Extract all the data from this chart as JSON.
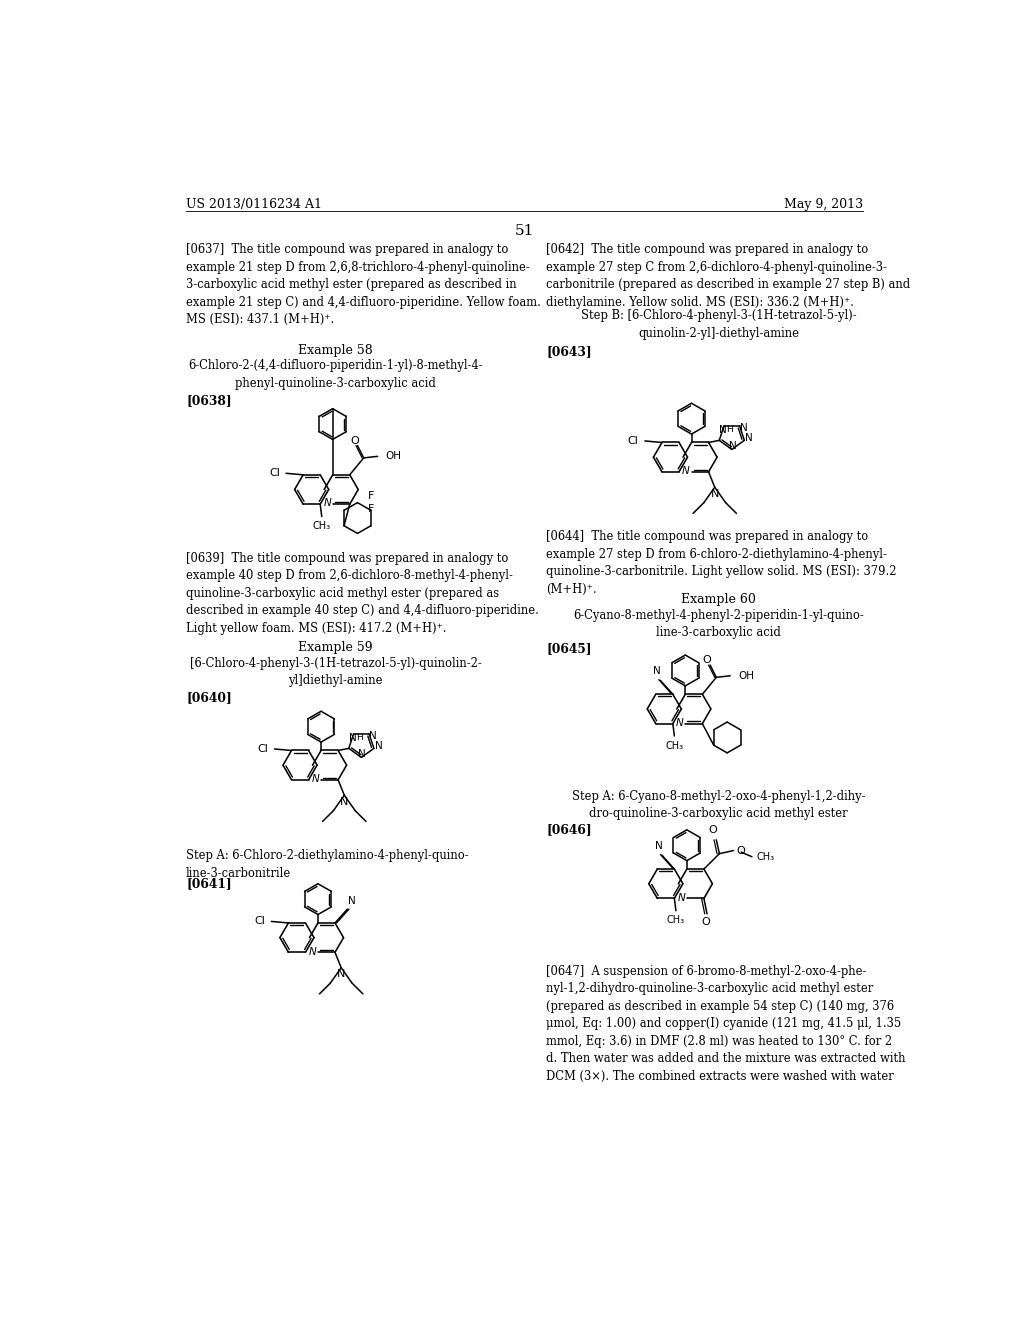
{
  "background_color": "#ffffff",
  "header_left": "US 2013/0116234 A1",
  "header_right": "May 9, 2013",
  "page_number": "51"
}
